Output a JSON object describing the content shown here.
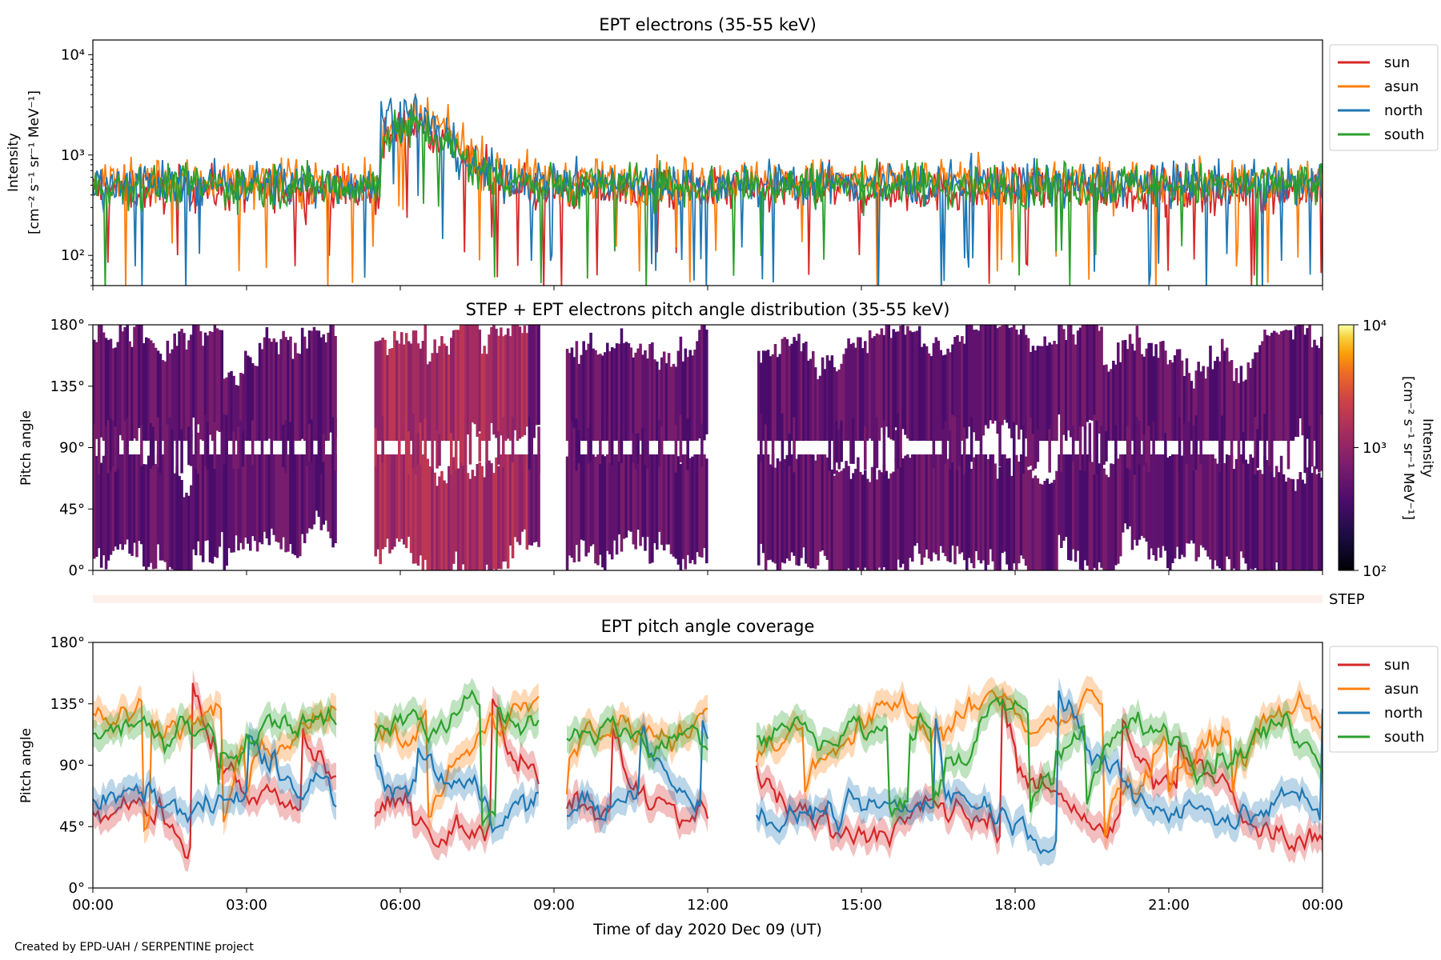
{
  "credit": "Created by EPD-UAH / SERPENTINE project",
  "chart_data": [
    {
      "type": "line",
      "title": "EPT electrons (35-55 keV)",
      "ylabel": [
        "Intensity",
        "[cm⁻² s⁻¹ sr⁻¹ MeV⁻¹]"
      ],
      "yscale": "log",
      "ylim": [
        50,
        14000
      ],
      "yticks": [
        100,
        1000,
        10000
      ],
      "ytick_labels": [
        "10²",
        "10³",
        "10⁴"
      ],
      "xlim_hours": [
        0,
        24
      ],
      "legend": {
        "placement": "outside-right-top",
        "entries": [
          "sun",
          "asun",
          "north",
          "south"
        ]
      },
      "series": [
        {
          "name": "sun",
          "color": "#d62728",
          "approx_baseline": 450,
          "approx_peak": [
            6.3,
            1700
          ]
        },
        {
          "name": "asun",
          "color": "#ff7f0e",
          "approx_baseline": 550,
          "approx_peak": [
            6.4,
            1800
          ]
        },
        {
          "name": "north",
          "color": "#1f77b4",
          "approx_baseline": 520,
          "approx_peak": [
            6.0,
            2300
          ]
        },
        {
          "name": "south",
          "color": "#2ca02c",
          "approx_baseline": 500,
          "approx_peak": [
            6.2,
            1600
          ]
        }
      ]
    },
    {
      "type": "heatmap",
      "title": "STEP + EPT electrons pitch angle distribution (35-55 keV)",
      "ylabel": "Pitch angle",
      "ylim": [
        0,
        180
      ],
      "yticks": [
        0,
        45,
        90,
        135,
        180
      ],
      "ytick_labels": [
        "0°",
        "45°",
        "90°",
        "135°",
        "180°"
      ],
      "colorbar": {
        "label": [
          "Intensity",
          "[cm⁻² s⁻¹ sr⁻¹ MeV⁻¹]"
        ],
        "scale": "log",
        "range": [
          100,
          10000
        ],
        "tick_labels": [
          "10²",
          "10³",
          "10⁴"
        ],
        "colormap": "inferno"
      },
      "data_gaps_hours": [
        [
          4.77,
          5.5
        ],
        [
          8.72,
          9.25
        ],
        [
          12.0,
          12.95
        ]
      ]
    },
    {
      "type": "bar",
      "label": "STEP",
      "note": "thin horizontal strip between panels"
    },
    {
      "type": "line",
      "title": "EPT pitch angle coverage",
      "ylabel": "Pitch angle",
      "xlabel": "Time of day 2020 Dec 09 (UT)",
      "ylim": [
        0,
        180
      ],
      "yticks": [
        0,
        45,
        90,
        135,
        180
      ],
      "ytick_labels": [
        "0°",
        "45°",
        "90°",
        "135°",
        "180°"
      ],
      "xlim_hours": [
        0,
        24
      ],
      "xticks_hours": [
        0,
        3,
        6,
        9,
        12,
        15,
        18,
        21,
        24
      ],
      "xtick_labels": [
        "00:00",
        "03:00",
        "06:00",
        "09:00",
        "12:00",
        "15:00",
        "18:00",
        "21:00",
        "00:00"
      ],
      "shaded_bands": true,
      "legend": {
        "placement": "outside-right-top",
        "entries": [
          "sun",
          "asun",
          "north",
          "south"
        ]
      },
      "series": [
        {
          "name": "sun",
          "color": "#d62728",
          "approx_mean": 50
        },
        {
          "name": "asun",
          "color": "#ff7f0e",
          "approx_mean": 130
        },
        {
          "name": "north",
          "color": "#1f77b4",
          "approx_mean": 60
        },
        {
          "name": "south",
          "color": "#2ca02c",
          "approx_mean": 120
        }
      ],
      "data_gaps_hours": [
        [
          4.77,
          5.5
        ],
        [
          8.72,
          9.25
        ],
        [
          12.0,
          12.95
        ]
      ]
    }
  ]
}
